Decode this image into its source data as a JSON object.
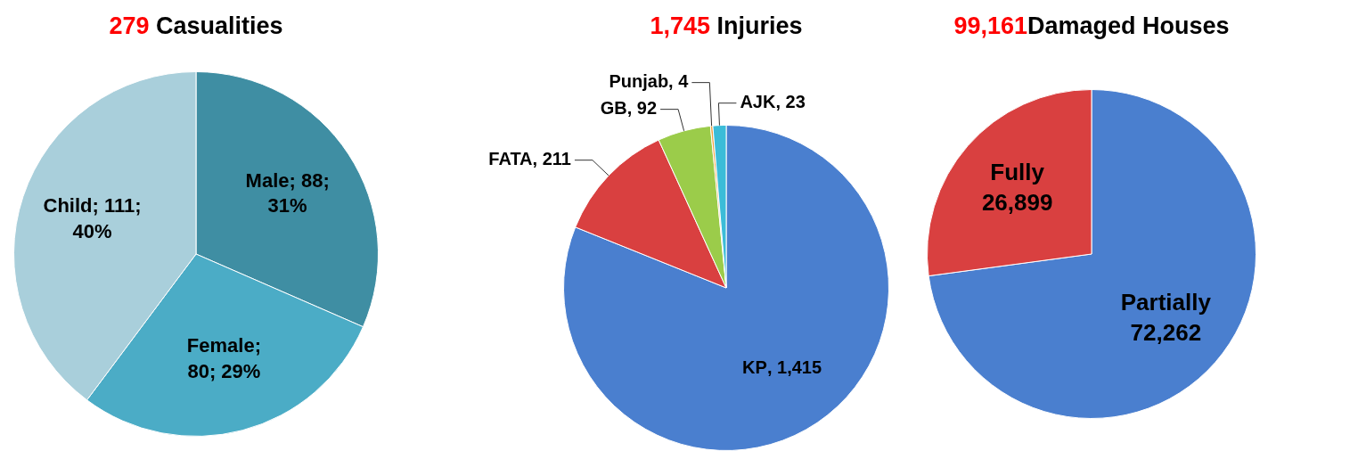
{
  "chart_data": [
    {
      "type": "pie",
      "title": "279 Casualities",
      "categories": [
        "Male",
        "Female",
        "Child"
      ],
      "values": [
        88,
        80,
        111
      ],
      "colors": [
        "#3f8ea3",
        "#4bacc6",
        "#a9cfdb"
      ],
      "value_labels": [
        "; 88; 31%",
        "; 80; 29%",
        "; 111; 40%"
      ]
    },
    {
      "type": "pie",
      "title": "1,745 Injuries",
      "categories": [
        "KP",
        "FATA",
        "GB",
        "Punjab",
        "AJK"
      ],
      "values": [
        1415,
        211,
        92,
        4,
        23
      ],
      "colors": [
        "#4a7fcf",
        "#d94040",
        "#9bcc4a",
        "#f0a040",
        "#3bbcd8"
      ],
      "value_labels": [
        ", 1,415",
        ", 211",
        ", 92",
        ", 4",
        ", 23"
      ]
    },
    {
      "type": "pie",
      "title": "99,161Damaged Houses",
      "categories": [
        "Partially",
        "Fully"
      ],
      "values": [
        72262,
        26899
      ],
      "colors": [
        "#4a7fcf",
        "#d94040"
      ],
      "value_labels": [
        " 72,262",
        " 26,899"
      ]
    }
  ]
}
